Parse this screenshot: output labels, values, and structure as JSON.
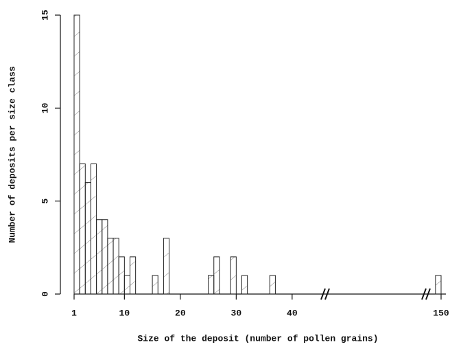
{
  "chart_data": {
    "type": "bar",
    "x": [
      1,
      2,
      3,
      4,
      5,
      6,
      7,
      8,
      9,
      10,
      11,
      15,
      17,
      25,
      26,
      29,
      31,
      36,
      149
    ],
    "values": [
      15,
      7,
      6,
      7,
      4,
      4,
      3,
      3,
      2,
      1,
      2,
      1,
      3,
      1,
      2,
      2,
      1,
      1,
      1
    ],
    "color": "#222222",
    "xlabel": "Size of the deposit (number of pollen grains)",
    "ylabel": "Number of deposits per size class",
    "xticks": [
      1,
      10,
      20,
      30,
      40,
      150
    ],
    "ylim": [
      0,
      15
    ],
    "yticks": [
      0,
      5,
      10,
      15
    ]
  }
}
